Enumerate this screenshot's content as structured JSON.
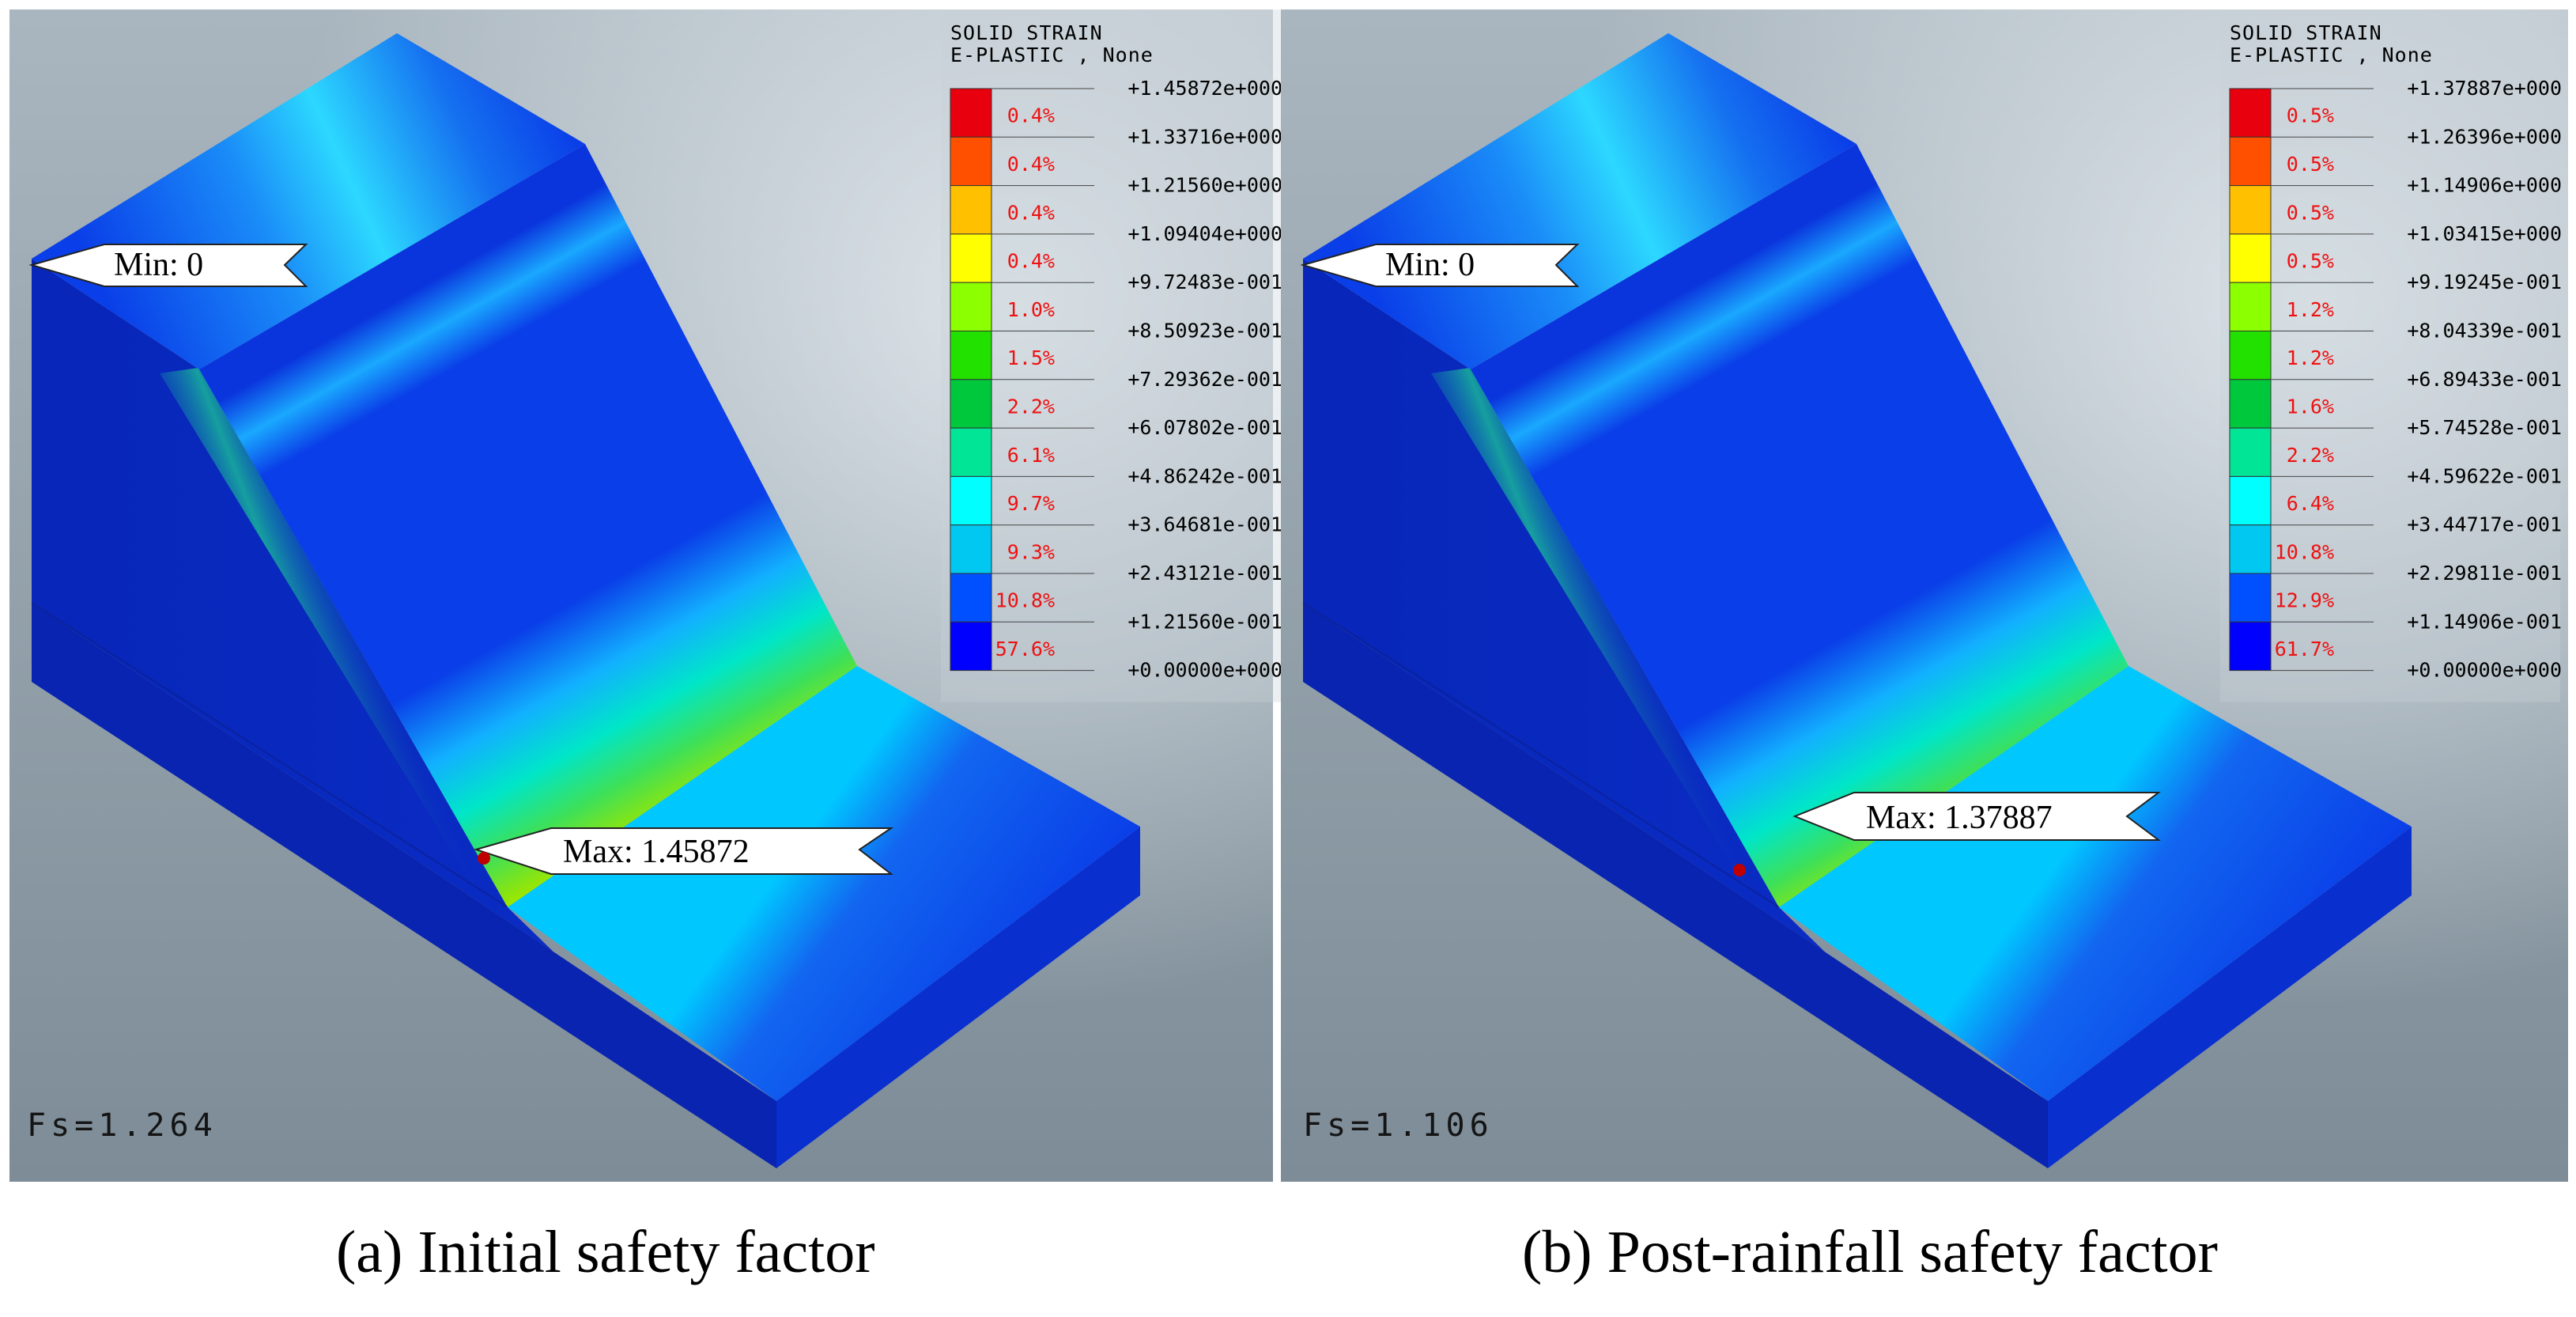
{
  "panels": [
    {
      "id": "a",
      "legend": {
        "title_line1": "SOLID STRAIN",
        "title_line2": "E-PLASTIC , None",
        "values": [
          "+1.45872e+000",
          "+1.33716e+000",
          "+1.21560e+000",
          "+1.09404e+000",
          "+9.72483e-001",
          "+8.50923e-001",
          "+7.29362e-001",
          "+6.07802e-001",
          "+4.86242e-001",
          "+3.64681e-001",
          "+2.43121e-001",
          "+1.21560e-001",
          "+0.00000e+000"
        ],
        "percents": [
          "0.4%",
          "0.4%",
          "0.4%",
          "0.4%",
          "1.0%",
          "1.5%",
          "2.2%",
          "6.1%",
          "9.7%",
          "9.3%",
          "10.8%",
          "57.6%"
        ]
      },
      "min_label": "Min:  0",
      "max_label": "Max:  1.45872",
      "fs": "Fs=1.264",
      "caption": "(a) Initial safety factor"
    },
    {
      "id": "b",
      "legend": {
        "title_line1": "SOLID STRAIN",
        "title_line2": "E-PLASTIC , None",
        "values": [
          "+1.37887e+000",
          "+1.26396e+000",
          "+1.14906e+000",
          "+1.03415e+000",
          "+9.19245e-001",
          "+8.04339e-001",
          "+6.89433e-001",
          "+5.74528e-001",
          "+4.59622e-001",
          "+3.44717e-001",
          "+2.29811e-001",
          "+1.14906e-001",
          "+0.00000e+000"
        ],
        "percents": [
          "0.5%",
          "0.5%",
          "0.5%",
          "0.5%",
          "1.2%",
          "1.2%",
          "1.6%",
          "2.2%",
          "6.4%",
          "10.8%",
          "12.9%",
          "61.7%"
        ]
      },
      "min_label": "Min:  0",
      "max_label": "Max:  1.37887",
      "fs": "Fs=1.106",
      "caption": "(b) Post-rainfall safety factor"
    }
  ],
  "colors": {
    "scale": [
      "#e8000e",
      "#ff5000",
      "#ffc000",
      "#ffff00",
      "#8cff00",
      "#22e000",
      "#00c83c",
      "#00e696",
      "#00ffff",
      "#00c8f0",
      "#0050ff",
      "#0000ff"
    ],
    "model_blue": "#0a33d8",
    "background": "#a7b4bd",
    "percent_text": "#ee1111"
  }
}
